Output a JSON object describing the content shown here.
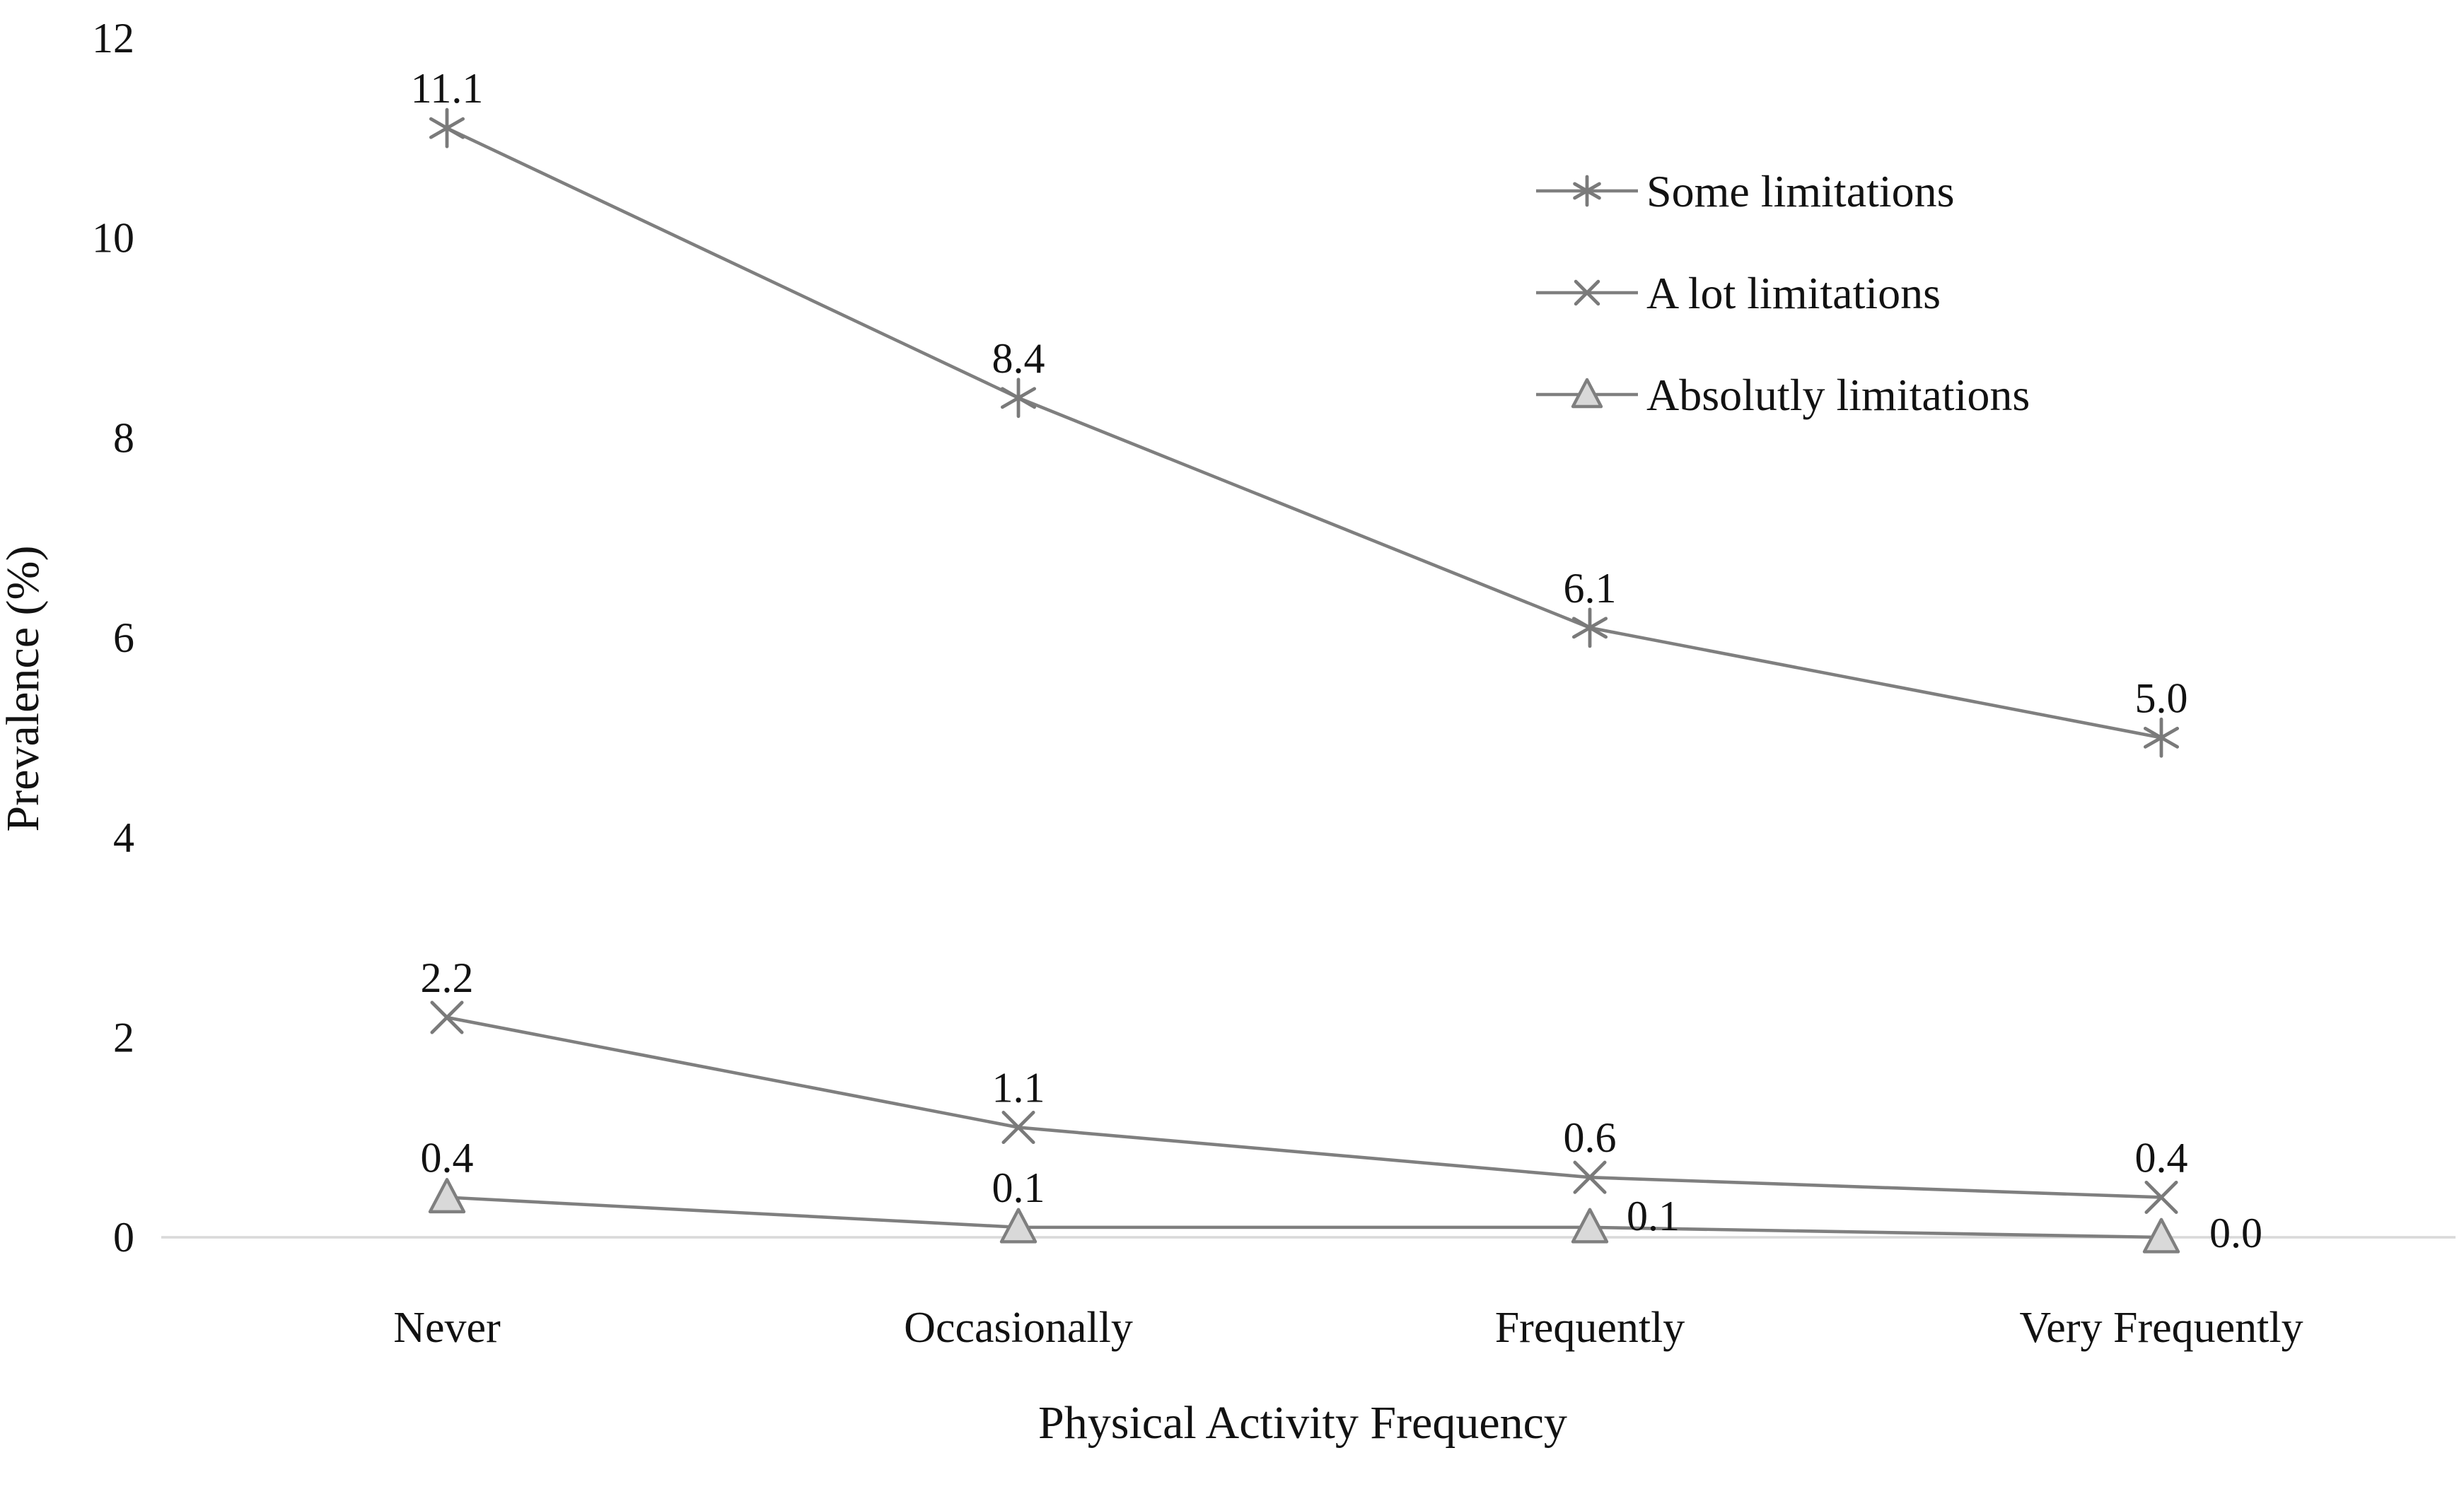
{
  "figure": {
    "aria_label": "Line chart showing prevalence (%) of activity limitations by physical activity frequency"
  },
  "chart_data": {
    "type": "line",
    "title": "",
    "xlabel": "Physical Activity Frequency",
    "ylabel": "Prevalence (%)",
    "categories": [
      "Never",
      "Occasionally",
      "Frequently",
      "Very Frequently"
    ],
    "series": [
      {
        "name": "Some limitations",
        "marker": "asterisk",
        "values": [
          11.1,
          8.4,
          6.1,
          5.0
        ],
        "data_labels": [
          "11.1",
          "8.4",
          "6.1",
          "5.0"
        ],
        "label_placement": [
          "above",
          "above",
          "above",
          "above"
        ]
      },
      {
        "name": "A lot limitations",
        "marker": "x",
        "values": [
          2.2,
          1.1,
          0.6,
          0.4
        ],
        "data_labels": [
          "2.2",
          "1.1",
          "0.6",
          "0.4"
        ],
        "label_placement": [
          "above",
          "above",
          "above",
          "above"
        ]
      },
      {
        "name": "Absolutly limitations",
        "marker": "triangle",
        "values": [
          0.4,
          0.1,
          0.1,
          0.0
        ],
        "data_labels": [
          "0.4",
          "0.1",
          "0.1",
          "0.0"
        ],
        "label_placement": [
          "above",
          "above",
          "right",
          "right"
        ]
      }
    ],
    "ylim": [
      0,
      12
    ],
    "ytick_step": 2,
    "yticks": [
      "0",
      "2",
      "4",
      "6",
      "8",
      "10",
      "12"
    ],
    "grid": false,
    "legend_position": "upper-right",
    "colors": {
      "series_line": "#7f7f7f",
      "marker_stroke": "#7a7a7a",
      "triangle_fill": "#d9d9d9",
      "baseline": "#d9d9d9",
      "text": "#121212"
    }
  }
}
